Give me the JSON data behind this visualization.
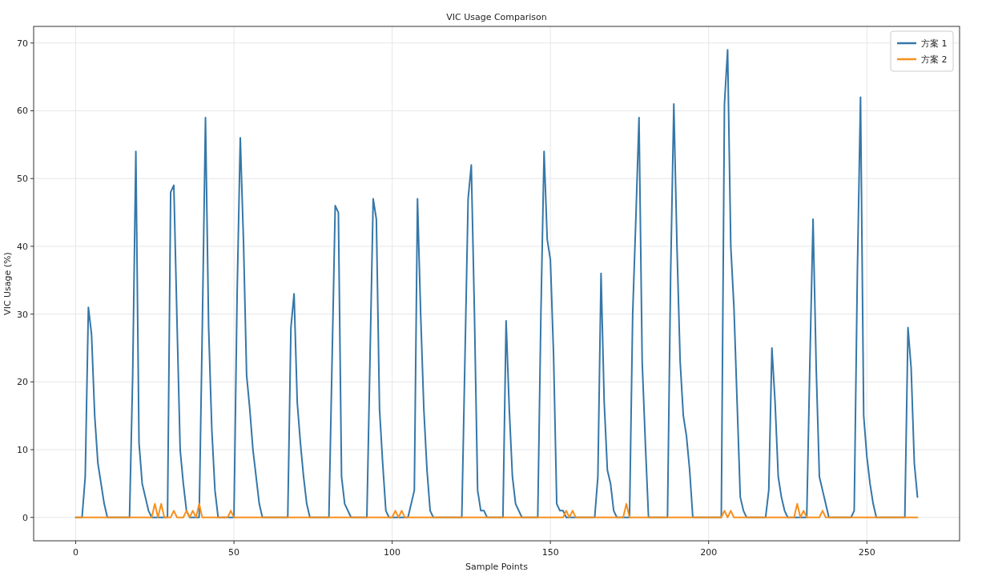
{
  "chart_data": {
    "type": "line",
    "title": "VIC Usage Comparison",
    "xlabel": "Sample Points",
    "ylabel": "VIC Usage (%)",
    "xlim": [
      -13.3,
      279.3
    ],
    "ylim": [
      -3.45,
      72.45
    ],
    "xticks": [
      0,
      50,
      100,
      150,
      200,
      250
    ],
    "yticks": [
      0,
      10,
      20,
      30,
      40,
      50,
      60,
      70
    ],
    "grid": true,
    "legend": "top right",
    "line_style": "solid",
    "series": [
      {
        "name": "方案 1",
        "color": "#3577a8",
        "x": [
          0,
          2,
          3,
          4,
          5,
          6,
          7,
          8,
          9,
          10,
          17,
          18,
          19,
          20,
          21,
          22,
          23,
          24,
          29,
          30,
          31,
          32,
          33,
          34,
          35,
          36,
          39,
          40,
          41,
          42,
          43,
          44,
          45,
          50,
          51,
          52,
          53,
          54,
          55,
          56,
          57,
          58,
          59,
          67,
          68,
          69,
          70,
          71,
          72,
          73,
          74,
          80,
          82,
          83,
          84,
          85,
          87,
          92,
          94,
          95,
          96,
          97,
          98,
          99,
          105,
          107,
          108,
          109,
          110,
          111,
          112,
          113,
          122,
          124,
          125,
          126,
          127,
          128,
          129,
          130,
          135,
          136,
          137,
          138,
          139,
          141,
          146,
          147,
          148,
          149,
          150,
          151,
          152,
          153,
          154,
          155,
          164,
          165,
          166,
          167,
          168,
          169,
          170,
          171,
          175,
          176,
          177,
          178,
          179,
          180,
          181,
          187,
          188,
          189,
          190,
          191,
          192,
          193,
          194,
          195,
          204,
          205,
          206,
          207,
          208,
          209,
          210,
          211,
          212,
          218,
          219,
          220,
          221,
          222,
          223,
          224,
          225,
          231,
          232,
          233,
          234,
          235,
          236,
          237,
          238,
          245,
          246,
          247,
          248,
          249,
          250,
          251,
          252,
          253,
          262,
          263,
          264,
          265,
          266
        ],
        "values": [
          0,
          0,
          6,
          31,
          27,
          15,
          8,
          5,
          2,
          0,
          0,
          21,
          54,
          11,
          5,
          3,
          1,
          0,
          0,
          48,
          49,
          29,
          10,
          5,
          1,
          0,
          0,
          28,
          59,
          28,
          13,
          4,
          0,
          0,
          33,
          56,
          41,
          21,
          16,
          10,
          6,
          2,
          0,
          0,
          28,
          33,
          17,
          11,
          6,
          2,
          0,
          0,
          46,
          45,
          6,
          2,
          0,
          0,
          47,
          44,
          16,
          8,
          1,
          0,
          0,
          4,
          47,
          30,
          16,
          7,
          1,
          0,
          0,
          47,
          52,
          30,
          4,
          1,
          1,
          0,
          0,
          29,
          16,
          6,
          2,
          0,
          0,
          30,
          54,
          41,
          38,
          24,
          2,
          1,
          1,
          0,
          0,
          6,
          36,
          17,
          7,
          5,
          1,
          0,
          0,
          30,
          44,
          59,
          23,
          11,
          0,
          0,
          36,
          61,
          40,
          23,
          15,
          12,
          7,
          0,
          0,
          61,
          69,
          40,
          31,
          17,
          3,
          1,
          0,
          0,
          4,
          25,
          17,
          6,
          3,
          1,
          0,
          0,
          23,
          44,
          22,
          6,
          4,
          2,
          0,
          0,
          1,
          36,
          62,
          15,
          9,
          5,
          2,
          0,
          0,
          28,
          22,
          8,
          3
        ]
      },
      {
        "name": "方案 2",
        "color": "#f7901e",
        "x": [
          0,
          24,
          25,
          26,
          27,
          28,
          30,
          31,
          32,
          34,
          35,
          36,
          37,
          38,
          39,
          40,
          48,
          49,
          50,
          100,
          101,
          102,
          103,
          104,
          154,
          155,
          156,
          157,
          158,
          173,
          174,
          175,
          204,
          205,
          206,
          207,
          208,
          227,
          228,
          229,
          230,
          231,
          235,
          236,
          237,
          266
        ],
        "values": [
          0,
          0,
          2,
          0,
          2,
          0,
          0,
          1,
          0,
          0,
          1,
          0,
          1,
          0,
          2,
          0,
          0,
          1,
          0,
          0,
          1,
          0,
          1,
          0,
          0,
          1,
          0,
          1,
          0,
          0,
          2,
          0,
          0,
          1,
          0,
          1,
          0,
          0,
          2,
          0,
          1,
          0,
          0,
          1,
          0,
          0
        ]
      }
    ]
  }
}
